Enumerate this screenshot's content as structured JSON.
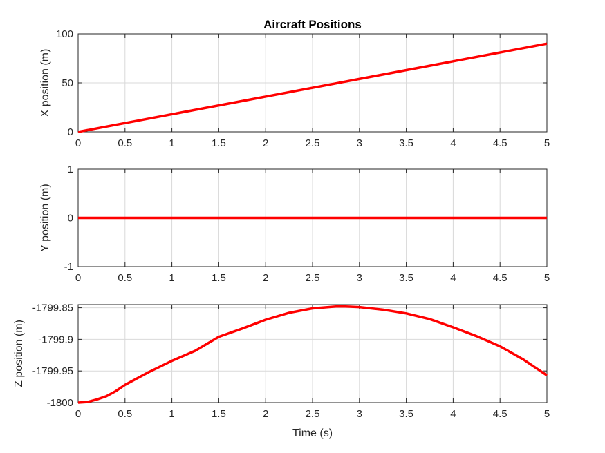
{
  "figure": {
    "title": "Aircraft Positions",
    "line_color": "#ff0000",
    "grid_color": "#d9d9d9",
    "axis_color": "#262626"
  },
  "chart_data": [
    {
      "type": "line",
      "title": "Aircraft Positions",
      "xlabel": "",
      "ylabel": "X position (m)",
      "xlim": [
        0,
        5
      ],
      "ylim": [
        0,
        100
      ],
      "xticks": [
        0,
        0.5,
        1,
        1.5,
        2,
        2.5,
        3,
        3.5,
        4,
        4.5,
        5
      ],
      "yticks": [
        0,
        50,
        100
      ],
      "ytick_labels": [
        "0",
        "50",
        "100"
      ],
      "grid": true,
      "series": [
        {
          "x": [
            0,
            5
          ],
          "y": [
            0,
            90
          ]
        }
      ]
    },
    {
      "type": "line",
      "title": "",
      "xlabel": "",
      "ylabel": "Y position (m)",
      "xlim": [
        0,
        5
      ],
      "ylim": [
        -1,
        1
      ],
      "xticks": [
        0,
        0.5,
        1,
        1.5,
        2,
        2.5,
        3,
        3.5,
        4,
        4.5,
        5
      ],
      "yticks": [
        -1,
        0,
        1
      ],
      "ytick_labels": [
        "-1",
        "0",
        "1"
      ],
      "grid": true,
      "series": [
        {
          "x": [
            0,
            5
          ],
          "y": [
            0,
            0
          ]
        }
      ]
    },
    {
      "type": "line",
      "title": "",
      "xlabel": "Time (s)",
      "ylabel": "Z position (m)",
      "xlim": [
        0,
        5
      ],
      "ylim": [
        -1800,
        -1799.845
      ],
      "xticks": [
        0,
        0.5,
        1,
        1.5,
        2,
        2.5,
        3,
        3.5,
        4,
        4.5,
        5
      ],
      "yticks": [
        -1800,
        -1799.95,
        -1799.9,
        -1799.85
      ],
      "ytick_labels": [
        "-1800",
        "-1799.95",
        "-1799.9",
        "-1799.85"
      ],
      "grid": true,
      "series": [
        {
          "x": [
            0,
            0.1,
            0.2,
            0.3,
            0.4,
            0.5,
            0.75,
            1.0,
            1.25,
            1.5,
            1.75,
            2.0,
            2.25,
            2.5,
            2.75,
            2.85,
            3.0,
            3.25,
            3.5,
            3.75,
            4.0,
            4.25,
            4.5,
            4.75,
            5.0
          ],
          "y": [
            -1800.0,
            -1799.999,
            -1799.995,
            -1799.99,
            -1799.982,
            -1799.972,
            -1799.952,
            -1799.934,
            -1799.918,
            -1799.896,
            -1799.883,
            -1799.869,
            -1799.858,
            -1799.851,
            -1799.848,
            -1799.848,
            -1799.849,
            -1799.853,
            -1799.859,
            -1799.868,
            -1799.881,
            -1799.895,
            -1799.911,
            -1799.932,
            -1799.957
          ]
        }
      ]
    }
  ]
}
